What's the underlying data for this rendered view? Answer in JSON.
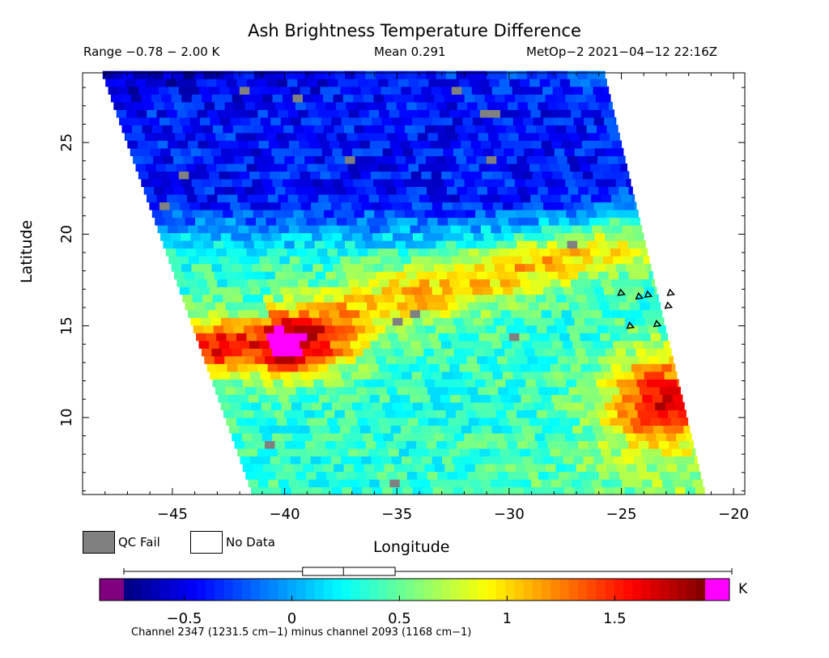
{
  "header": {
    "title": "Ash Brightness Temperature Difference",
    "range": "Range −0.78 − 2.00 K",
    "mean": "Mean 0.291",
    "satellite": "MetOp−2 2021−04−12 22:16Z"
  },
  "legend": {
    "qc_fail": "QC Fail",
    "no_data": "No Data",
    "qc_fail_color": "#808080",
    "no_data_color": "#ffffff"
  },
  "colorbar": {
    "unit": "K",
    "caption": "Channel 2347 (1231.5 cm−1) minus channel 2093 (1168 cm−1)",
    "range": [
      -0.78,
      1.92
    ],
    "ticks": [
      {
        "value": -0.5,
        "label": "−0.5"
      },
      {
        "value": 0,
        "label": "0"
      },
      {
        "value": 0.5,
        "label": "0.5"
      },
      {
        "value": 1,
        "label": "1"
      },
      {
        "value": 1.5,
        "label": "1.5"
      }
    ],
    "under_color": "#800080",
    "over_color": "#ff00ff",
    "boxplot": {
      "min": -0.78,
      "q1": 0.05,
      "median": 0.24,
      "q3": 0.48,
      "max": 2.0
    }
  },
  "chart_data": {
    "type": "heatmap",
    "title": "Ash Brightness Temperature Difference",
    "xlabel": "Longitude",
    "ylabel": "Latitude",
    "xlim": [
      -49.0,
      -19.5
    ],
    "ylim": [
      5.8,
      28.8
    ],
    "x_ticks": [
      {
        "value": -45,
        "label": "−45"
      },
      {
        "value": -40,
        "label": "−40"
      },
      {
        "value": -35,
        "label": "−35"
      },
      {
        "value": -30,
        "label": "−30"
      },
      {
        "value": -25,
        "label": "−25"
      },
      {
        "value": -20,
        "label": "−20"
      }
    ],
    "y_ticks": [
      {
        "value": 10,
        "label": "10"
      },
      {
        "value": 15,
        "label": "15"
      },
      {
        "value": 20,
        "label": "20"
      },
      {
        "value": 25,
        "label": "25"
      }
    ],
    "swath": {
      "left_edge": [
        [
          -48.2,
          28.8
        ],
        [
          -41.5,
          5.8
        ]
      ],
      "right_edge": [
        [
          -25.8,
          28.8
        ],
        [
          -21.3,
          5.8
        ]
      ]
    },
    "value_range": [
      -0.78,
      2.0
    ],
    "mean": 0.291,
    "features": [
      {
        "name": "northern low band",
        "lat": [
          19,
          28.8
        ],
        "value": -0.35
      },
      {
        "name": "ITCZ warm band west",
        "lat_center": 13.8,
        "lon": [
          -44,
          -37
        ],
        "value": 1.5
      },
      {
        "name": "diagonal warm band",
        "from": [
          -40,
          15
        ],
        "to": [
          -24,
          20
        ],
        "value": 1.0
      },
      {
        "name": "southeast warm patch",
        "lon": [
          -26,
          -22
        ],
        "lat": [
          8,
          13
        ],
        "value": 1.5
      }
    ],
    "coastlines": "Cape Verde islands near lon -25 to -22, lat 14.5 to 17"
  }
}
